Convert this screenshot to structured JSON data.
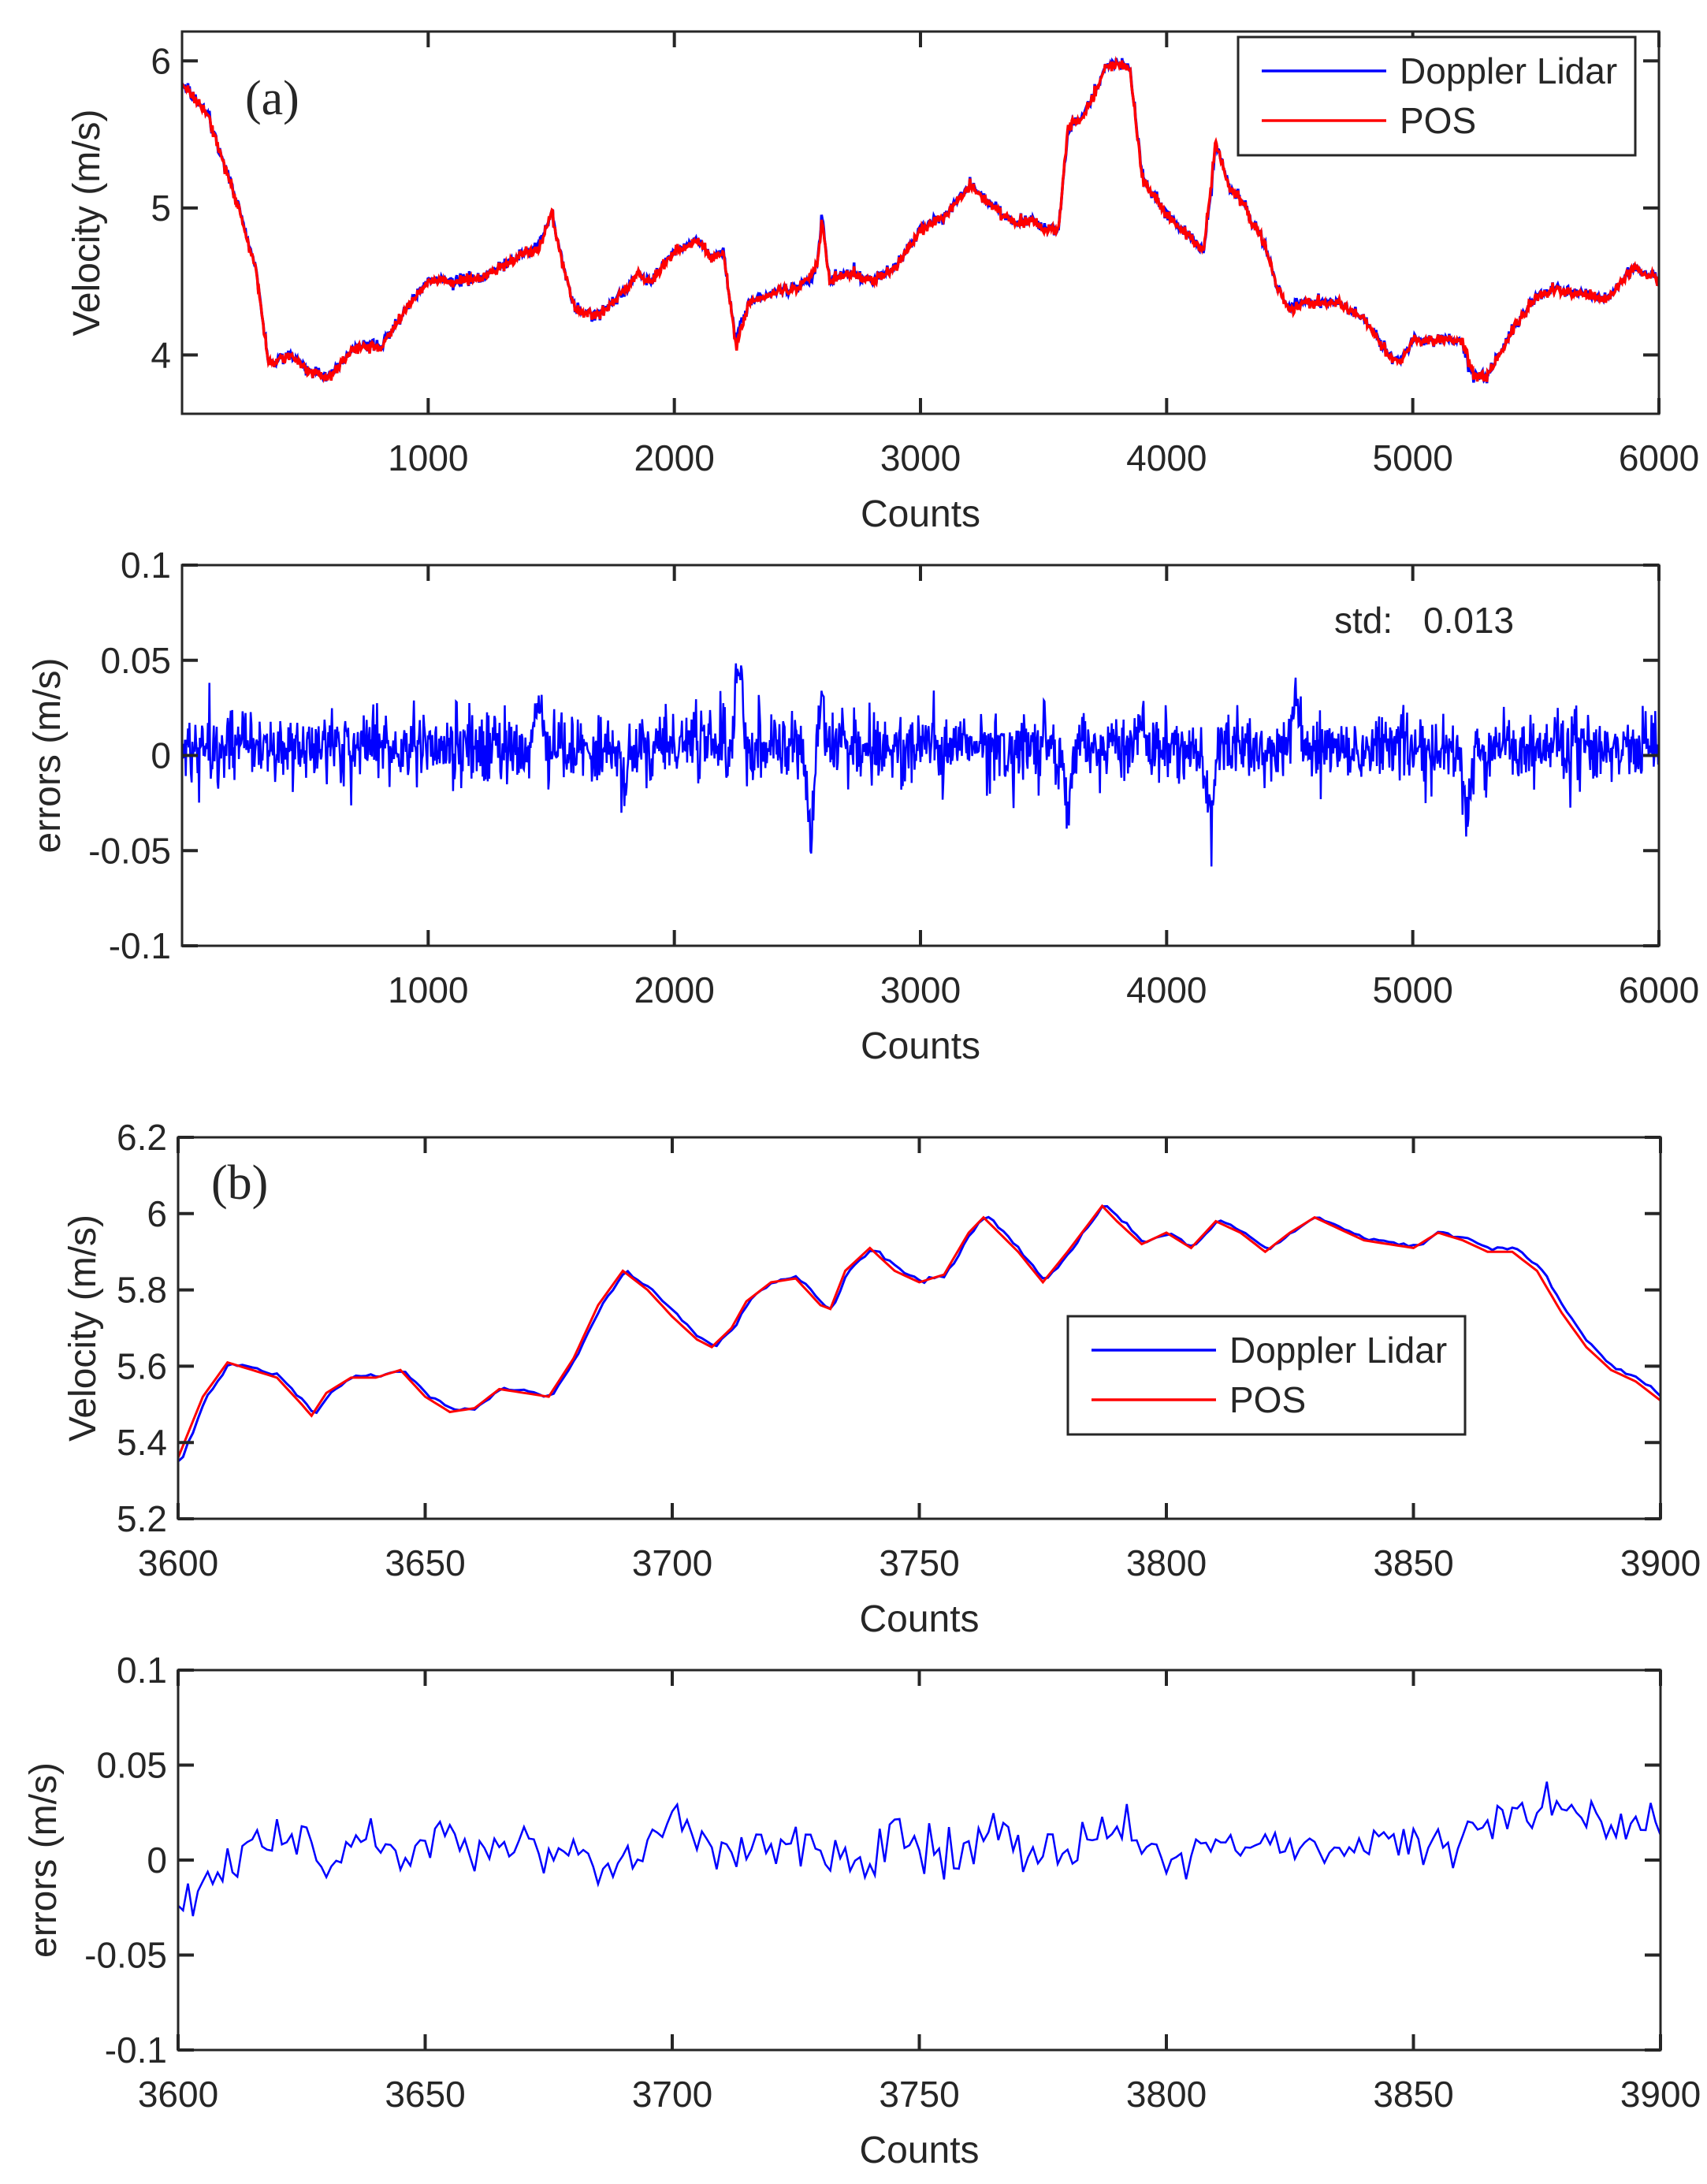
{
  "colors": {
    "lidar": "#0000ff",
    "pos": "#ff0000",
    "axis": "#262626"
  },
  "chart_data": [
    {
      "id": "a-velocity",
      "type": "line",
      "panel_label": "(a)",
      "xlabel": "Counts",
      "ylabel": "Velocity (m/s)",
      "xlim": [
        0,
        6000
      ],
      "ylim": [
        3.6,
        6.2
      ],
      "xticks": [
        1000,
        2000,
        3000,
        4000,
        5000,
        6000
      ],
      "xtick_labels": [
        "1000",
        "2000",
        "3000",
        "4000",
        "5000",
        "6000"
      ],
      "yticks": [
        4,
        5,
        6
      ],
      "ytick_labels": [
        "4",
        "5",
        "6"
      ],
      "legend": {
        "position": "top-right",
        "entries": [
          "Doppler Lidar",
          "POS"
        ]
      },
      "series": [
        {
          "name": "POS",
          "color_key": "pos",
          "x": [
            0,
            100,
            200,
            300,
            350,
            400,
            450,
            500,
            600,
            700,
            800,
            850,
            900,
            1000,
            1100,
            1200,
            1300,
            1400,
            1450,
            1500,
            1550,
            1600,
            1700,
            1800,
            1850,
            1900,
            2000,
            2100,
            2150,
            2200,
            2250,
            2300,
            2400,
            2500,
            2580,
            2600,
            2630,
            2700,
            2800,
            2900,
            3000,
            3100,
            3200,
            3300,
            3400,
            3450,
            3500,
            3560,
            3600,
            3650,
            3700,
            3750,
            3800,
            3850,
            3900,
            4000,
            4100,
            4150,
            4200,
            4250,
            4300,
            4400,
            4450,
            4500,
            4550,
            4600,
            4700,
            4800,
            4900,
            4950,
            5000,
            5100,
            5200,
            5250,
            5300,
            5400,
            5500,
            5600,
            5700,
            5800,
            5900,
            6000
          ],
          "y": [
            5.85,
            5.65,
            5.15,
            4.6,
            3.95,
            3.98,
            4.0,
            3.9,
            3.85,
            4.05,
            4.05,
            4.15,
            4.3,
            4.5,
            4.5,
            4.52,
            4.6,
            4.7,
            4.72,
            4.97,
            4.6,
            4.3,
            4.28,
            4.45,
            4.55,
            4.5,
            4.7,
            4.78,
            4.65,
            4.7,
            4.05,
            4.35,
            4.42,
            4.45,
            4.6,
            4.92,
            4.5,
            4.55,
            4.5,
            4.6,
            4.85,
            4.95,
            5.15,
            5.0,
            4.9,
            4.92,
            4.85,
            4.85,
            5.55,
            5.6,
            5.75,
            5.95,
            5.98,
            5.95,
            5.2,
            4.95,
            4.8,
            4.7,
            5.45,
            5.15,
            5.05,
            4.75,
            4.45,
            4.3,
            4.35,
            4.35,
            4.35,
            4.25,
            4.0,
            3.95,
            4.1,
            4.1,
            4.1,
            3.85,
            3.85,
            4.15,
            4.4,
            4.45,
            4.4,
            4.4,
            4.6,
            4.5
          ]
        },
        {
          "name": "Doppler Lidar",
          "color_key": "lidar",
          "derived_from": "POS + errors"
        }
      ]
    },
    {
      "id": "a-errors",
      "type": "line",
      "xlabel": "Counts",
      "ylabel": "errors (m/s)",
      "xlim": [
        0,
        6000
      ],
      "ylim": [
        -0.1,
        0.1
      ],
      "xticks": [
        1000,
        2000,
        3000,
        4000,
        5000,
        6000
      ],
      "xtick_labels": [
        "1000",
        "2000",
        "3000",
        "4000",
        "5000",
        "6000"
      ],
      "yticks": [
        -0.1,
        -0.05,
        0,
        0.05,
        0.1
      ],
      "ytick_labels": [
        "-0.1",
        "-0.05",
        "0",
        "0.05",
        "0.1"
      ],
      "annotation": {
        "label": "std:",
        "value": "0.013"
      },
      "noise_std": 0.009,
      "baseline": 0.004,
      "events": [
        {
          "x": 1450,
          "amp": 0.025
        },
        {
          "x": 1800,
          "amp": -0.022
        },
        {
          "x": 2260,
          "amp": 0.045
        },
        {
          "x": 2555,
          "amp": -0.05
        },
        {
          "x": 2600,
          "amp": 0.025
        },
        {
          "x": 3600,
          "amp": -0.035
        },
        {
          "x": 3900,
          "amp": 0.018
        },
        {
          "x": 4175,
          "amp": -0.042
        },
        {
          "x": 4520,
          "amp": 0.03
        },
        {
          "x": 5220,
          "amp": -0.033
        }
      ],
      "series": [
        {
          "name": "errors",
          "color_key": "lidar"
        }
      ]
    },
    {
      "id": "b-velocity",
      "type": "line",
      "panel_label": "(b)",
      "xlabel": "Counts",
      "ylabel": "Velocity (m/s)",
      "xlim": [
        3600,
        3900
      ],
      "ylim": [
        5.2,
        6.2
      ],
      "xticks": [
        3600,
        3650,
        3700,
        3750,
        3800,
        3850,
        3900
      ],
      "xtick_labels": [
        "3600",
        "3650",
        "3700",
        "3750",
        "3800",
        "3850",
        "3900"
      ],
      "yticks": [
        5.2,
        5.4,
        5.6,
        5.8,
        6,
        6.2
      ],
      "ytick_labels": [
        "5.2",
        "5.4",
        "5.6",
        "5.8",
        "6",
        "6.2"
      ],
      "legend": {
        "position": "center-right",
        "entries": [
          "Doppler Lidar",
          "POS"
        ]
      },
      "series": [
        {
          "name": "POS",
          "color_key": "pos",
          "x": [
            3600,
            3605,
            3610,
            3615,
            3620,
            3625,
            3627,
            3630,
            3635,
            3640,
            3645,
            3650,
            3655,
            3660,
            3665,
            3670,
            3675,
            3680,
            3685,
            3690,
            3695,
            3700,
            3705,
            3708,
            3712,
            3715,
            3720,
            3725,
            3730,
            3732,
            3735,
            3740,
            3745,
            3750,
            3755,
            3760,
            3763,
            3770,
            3775,
            3780,
            3787,
            3790,
            3795,
            3800,
            3805,
            3810,
            3815,
            3820,
            3825,
            3830,
            3835,
            3840,
            3845,
            3850,
            3855,
            3860,
            3865,
            3870,
            3875,
            3880,
            3885,
            3890,
            3895,
            3900
          ],
          "y": [
            5.36,
            5.52,
            5.61,
            5.59,
            5.57,
            5.5,
            5.47,
            5.53,
            5.57,
            5.57,
            5.59,
            5.52,
            5.48,
            5.49,
            5.54,
            5.53,
            5.52,
            5.62,
            5.76,
            5.85,
            5.8,
            5.73,
            5.67,
            5.65,
            5.7,
            5.77,
            5.82,
            5.83,
            5.76,
            5.75,
            5.85,
            5.91,
            5.85,
            5.82,
            5.84,
            5.95,
            5.99,
            5.9,
            5.82,
            5.9,
            6.02,
            5.98,
            5.92,
            5.95,
            5.91,
            5.98,
            5.95,
            5.9,
            5.95,
            5.99,
            5.96,
            5.93,
            5.92,
            5.91,
            5.95,
            5.93,
            5.9,
            5.9,
            5.85,
            5.74,
            5.65,
            5.59,
            5.56,
            5.51
          ]
        },
        {
          "name": "Doppler Lidar",
          "color_key": "lidar",
          "derived_from": "POS + errors"
        }
      ]
    },
    {
      "id": "b-errors",
      "type": "line",
      "xlabel": "Counts",
      "ylabel": "errors (m/s)",
      "xlim": [
        3600,
        3900
      ],
      "ylim": [
        -0.1,
        0.1
      ],
      "xticks": [
        3600,
        3650,
        3700,
        3750,
        3800,
        3850,
        3900
      ],
      "xtick_labels": [
        "3600",
        "3650",
        "3700",
        "3750",
        "3800",
        "3850",
        "3900"
      ],
      "yticks": [
        -0.1,
        -0.05,
        0,
        0.05,
        0.1
      ],
      "ytick_labels": [
        "-0.1",
        "-0.05",
        "0",
        "0.05",
        "0.1"
      ],
      "noise_std": 0.006,
      "series": [
        {
          "name": "errors",
          "color_key": "lidar",
          "x": [
            3600,
            3605,
            3610,
            3615,
            3620,
            3625,
            3630,
            3635,
            3640,
            3645,
            3650,
            3655,
            3660,
            3665,
            3670,
            3675,
            3680,
            3685,
            3690,
            3695,
            3700,
            3705,
            3710,
            3715,
            3720,
            3725,
            3730,
            3735,
            3740,
            3745,
            3750,
            3755,
            3760,
            3765,
            3770,
            3775,
            3780,
            3785,
            3790,
            3795,
            3800,
            3805,
            3810,
            3815,
            3820,
            3825,
            3830,
            3835,
            3840,
            3845,
            3850,
            3855,
            3860,
            3865,
            3870,
            3875,
            3880,
            3885,
            3890,
            3895,
            3900
          ],
          "y": [
            -0.025,
            -0.015,
            -0.005,
            0.005,
            0.01,
            0.015,
            -0.005,
            0.01,
            0.015,
            0.005,
            0.01,
            0.015,
            0.005,
            0.01,
            0.01,
            0.0,
            0.015,
            -0.01,
            0.005,
            0.005,
            0.02,
            0.01,
            0.005,
            0.005,
            0.01,
            0.01,
            0.005,
            0.0,
            -0.005,
            0.02,
            0.005,
            0.0,
            0.0,
            0.015,
            0.01,
            0.005,
            0.0,
            0.01,
            0.015,
            0.01,
            0.0,
            0.005,
            0.01,
            0.005,
            0.01,
            0.01,
            0.005,
            0.0,
            0.01,
            0.015,
            0.01,
            0.01,
            0.005,
            0.02,
            0.025,
            0.02,
            0.025,
            0.03,
            0.015,
            0.02,
            0.02
          ]
        }
      ]
    }
  ]
}
